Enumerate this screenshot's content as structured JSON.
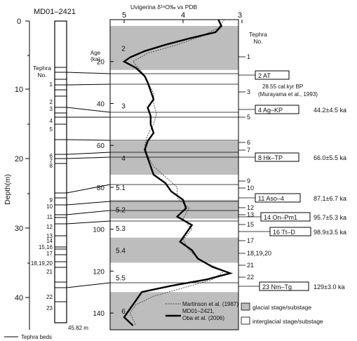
{
  "core_id": "MD01–2421",
  "top_axis_title": "Uvigerina δ¹⁸O‰ vs PDB",
  "top_ticks": [
    "5",
    "4",
    "3"
  ],
  "depth_label": "Depth(m)",
  "depth_ticks": [
    "0",
    "10",
    "20",
    "30",
    "40"
  ],
  "age_label": "Age\n(ka)",
  "age_ticks": [
    "20",
    "40",
    "60",
    "80",
    "100",
    "120",
    "140"
  ],
  "core_base_label": "45.82 m",
  "tephra_beds_legend": "Tephra beds",
  "left_tephra_header": "Tephra\nNo.",
  "right_tephra_header": "Tephra\nNo.",
  "left_tephra_numbers": [
    "1",
    "2",
    "3",
    "4",
    "5",
    "6",
    "7",
    "8",
    "9",
    "10",
    "11",
    "12",
    "13",
    "14",
    "15,16",
    "17",
    "18,19,20",
    "21",
    "22",
    "23"
  ],
  "right_tephra_numbers": [
    "1",
    "3",
    "5",
    "6",
    "7",
    "9",
    "10",
    "12",
    "13",
    "15",
    "17",
    "18,19,20",
    "21",
    "22"
  ],
  "mis_stages": [
    "2",
    "3",
    "4",
    "5.1",
    "5.2",
    "5.3",
    "5.4",
    "5.5",
    "6"
  ],
  "named_tephras": [
    {
      "label": "2  AT",
      "age": ""
    },
    {
      "label": "4  Ag–KP",
      "age": "44.2±4.5 ka"
    },
    {
      "label": "8  Hk–TP",
      "age": "66.0±5.5 ka"
    },
    {
      "label": "11  Aso–4",
      "age": "87.1±6.7 ka"
    },
    {
      "label": "14  On–Pm1",
      "age": "95.7±5.3 ka"
    },
    {
      "label": "16  Tt–D",
      "age": "98.9±3.5 ka"
    },
    {
      "label": "23  Nm–Tg",
      "age": "129±3.0 ka"
    }
  ],
  "at_note_1": "28.55 cal.kyr BP",
  "at_note_2": "(Murayama et al., 1993)",
  "legend": {
    "martinson": "Martinson et al. (1987)",
    "md01_line1": "MD01–2421,",
    "md01_line2": "Oba et al. (2006)",
    "glacial": "glacial stage/substage",
    "interglacial": "interglacial stage/substage"
  },
  "colors": {
    "glacial": "#bdbdbd",
    "interglacial": "#ffffff",
    "line": "#000000"
  },
  "chart_data": {
    "type": "line",
    "xlabel": "Uvigerina δ¹⁸O‰ vs PDB",
    "ylabel": "Age (ka)",
    "xlim": [
      5.5,
      3.0
    ],
    "ylim": [
      0,
      148
    ],
    "series": [
      {
        "name": "MD01–2421, Oba et al. (2006)",
        "age": [
          0,
          3,
          6,
          9,
          12,
          15,
          18,
          20,
          23,
          27,
          30,
          34,
          38,
          42,
          46,
          50,
          54,
          58,
          62,
          66,
          70,
          74,
          78,
          82,
          86,
          90,
          94,
          98,
          102,
          106,
          110,
          114,
          118,
          121,
          124,
          127,
          130,
          134,
          138,
          142,
          146
        ],
        "values": [
          3.4,
          3.35,
          3.45,
          3.9,
          4.3,
          4.65,
          4.9,
          5.0,
          4.8,
          4.65,
          4.6,
          4.55,
          4.5,
          4.6,
          4.55,
          4.55,
          4.5,
          4.6,
          4.65,
          4.6,
          4.55,
          4.5,
          4.3,
          4.2,
          4.0,
          3.95,
          4.1,
          3.85,
          3.95,
          4.05,
          3.85,
          3.75,
          3.5,
          3.2,
          3.6,
          4.2,
          4.7,
          4.8,
          4.9,
          5.0,
          4.85
        ]
      },
      {
        "name": "Martinson et al. (1987)",
        "age": [
          0,
          4,
          8,
          12,
          16,
          20,
          25,
          30,
          35,
          40,
          45,
          50,
          55,
          60,
          65,
          70,
          75,
          80,
          85,
          90,
          95,
          100,
          105,
          110,
          115,
          120,
          124,
          128,
          132,
          136,
          140,
          146
        ],
        "values": [
          3.3,
          3.4,
          3.7,
          4.1,
          4.6,
          4.85,
          4.7,
          4.6,
          4.5,
          4.5,
          4.45,
          4.5,
          4.6,
          4.65,
          4.6,
          4.5,
          4.3,
          4.1,
          4.1,
          3.9,
          4.0,
          3.85,
          4.0,
          3.9,
          3.7,
          3.3,
          3.5,
          4.0,
          4.5,
          4.8,
          4.9,
          4.8
        ]
      }
    ],
    "stages": [
      {
        "name": "2",
        "from": 3,
        "to": 24,
        "type": "glacial"
      },
      {
        "name": "3",
        "from": 24,
        "to": 58,
        "type": "interglacial"
      },
      {
        "name": "4",
        "from": 58,
        "to": 74,
        "type": "glacial"
      },
      {
        "name": "5.1",
        "from": 74,
        "to": 86,
        "type": "interglacial"
      },
      {
        "name": "5.2",
        "from": 86,
        "to": 95,
        "type": "glacial"
      },
      {
        "name": "5.3",
        "from": 95,
        "to": 104,
        "type": "interglacial"
      },
      {
        "name": "5.4",
        "from": 104,
        "to": 116,
        "type": "glacial"
      },
      {
        "name": "5.5",
        "from": 116,
        "to": 130,
        "type": "interglacial"
      },
      {
        "name": "6",
        "from": 130,
        "to": 148,
        "type": "glacial"
      }
    ]
  }
}
